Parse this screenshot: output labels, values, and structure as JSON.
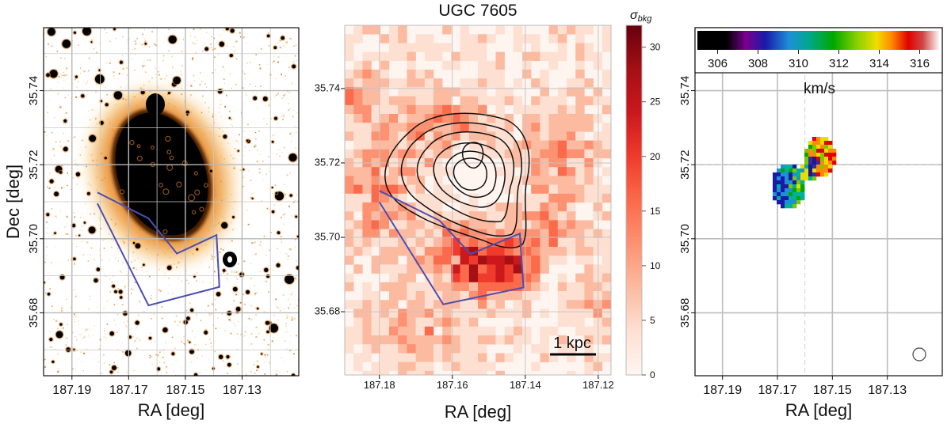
{
  "chart_data": [
    {
      "type": "image",
      "panel": "left",
      "title": "",
      "xlabel": "RA [deg]",
      "ylabel": "Dec [deg]",
      "xlim": [
        187.2,
        187.11
      ],
      "ylim": [
        35.663,
        35.757
      ],
      "x_ticks": [
        "187.19",
        "187.17",
        "187.15",
        "187.13"
      ],
      "x_tick_values": [
        187.19,
        187.17,
        187.15,
        187.13
      ],
      "y_ticks": [
        "35.68",
        "35.70",
        "35.72",
        "35.74"
      ],
      "y_tick_values": [
        35.68,
        35.7,
        35.72,
        35.74
      ],
      "grid": true,
      "colormap": "black-to-orange on white",
      "polygon_ra_dec": [
        [
          187.181,
          35.7125
        ],
        [
          187.163,
          35.7055
        ],
        [
          187.153,
          35.696
        ],
        [
          187.139,
          35.701
        ],
        [
          187.138,
          35.687
        ],
        [
          187.163,
          35.682
        ],
        [
          187.181,
          35.7095
        ]
      ],
      "polygon_color": "#4a4fb0"
    },
    {
      "type": "heatmap",
      "panel": "middle",
      "title": "UGC 7605",
      "xlabel": "RA [deg]",
      "ylabel": "",
      "xlim": [
        187.1895,
        187.1165
      ],
      "ylim": [
        35.663,
        35.757
      ],
      "x_ticks": [
        "187.18",
        "187.16",
        "187.14",
        "187.12"
      ],
      "x_tick_values": [
        187.18,
        187.16,
        187.14,
        187.12
      ],
      "y_ticks": [
        "35.68",
        "35.70",
        "35.72",
        "35.74"
      ],
      "y_tick_values": [
        35.68,
        35.7,
        35.72,
        35.74
      ],
      "grid": true,
      "colorbar": {
        "label": "σbkg",
        "label_base": "σ",
        "label_sub": "bkg",
        "range": [
          0,
          32
        ],
        "ticks": [
          "0",
          "5",
          "10",
          "15",
          "20",
          "25",
          "30"
        ],
        "tick_values": [
          0,
          5,
          10,
          15,
          20,
          25,
          30
        ],
        "colormap": "Reds"
      },
      "scale_bar": "1 kpc",
      "contour_color": "#111111",
      "polygon_ra_dec": [
        [
          187.18,
          35.7125
        ],
        [
          187.1635,
          35.7045
        ],
        [
          187.155,
          35.6955
        ],
        [
          187.1415,
          35.701
        ],
        [
          187.1405,
          35.6865
        ],
        [
          187.1625,
          35.682
        ],
        [
          187.18,
          35.7095
        ]
      ],
      "polygon_color": "#4a4fb0"
    },
    {
      "type": "image",
      "panel": "right",
      "title": "",
      "xlabel": "RA [deg]",
      "ylabel": "",
      "xlim": [
        187.2,
        187.11
      ],
      "ylim": [
        35.663,
        35.757
      ],
      "x_ticks": [
        "187.19",
        "187.17",
        "187.15",
        "187.13"
      ],
      "x_tick_values": [
        187.19,
        187.17,
        187.15,
        187.13
      ],
      "y_ticks": [
        "35.68",
        "35.70",
        "35.72",
        "35.74"
      ],
      "y_tick_values": [
        35.68,
        35.7,
        35.72,
        35.74
      ],
      "grid": true,
      "colorbar": {
        "label": "km/s",
        "range": [
          305,
          317
        ],
        "ticks": [
          "306",
          "308",
          "310",
          "312",
          "314",
          "316"
        ],
        "tick_values": [
          306,
          308,
          310,
          312,
          314,
          316
        ],
        "orientation": "horizontal",
        "placement": "top-inside",
        "colormap": "nipy_spectral"
      },
      "beam": "bottom-right circle"
    }
  ]
}
